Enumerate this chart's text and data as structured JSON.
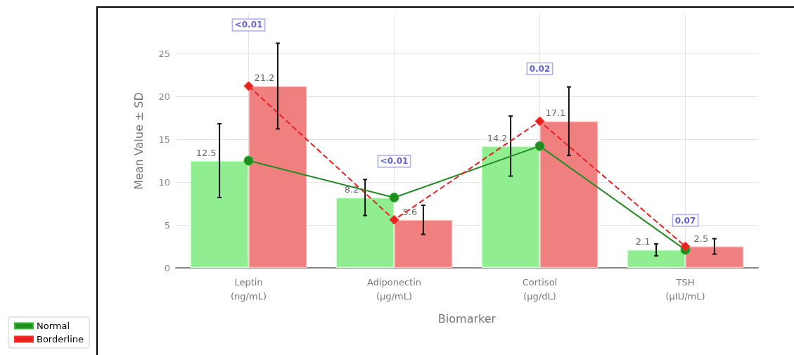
{
  "chart_data": {
    "type": "bar",
    "xlabel": "Biomarker",
    "ylabel": "Mean Value ± SD",
    "categories": [
      "Leptin\n(ng/mL)",
      "Adiponectin\n(µg/mL)",
      "Cortisol\n(µg/dL)",
      "TSH\n(µIU/mL)"
    ],
    "series": [
      {
        "name": "Normal",
        "type": "line",
        "color": "#228b22",
        "values": [
          12.5,
          8.2,
          14.2,
          2.1
        ],
        "marker": "circle",
        "line_style": "solid"
      },
      {
        "name": "Borderline",
        "type": "line",
        "color": "#e8231f",
        "values": [
          21.2,
          5.6,
          17.1,
          2.5
        ],
        "marker": "diamond",
        "line_style": "dashed"
      },
      {
        "color": "#90ee90",
        "values": [
          12.5,
          8.2,
          14.2,
          2.1
        ],
        "errors": [
          4.3,
          2.1,
          3.5,
          0.7
        ],
        "value_labels": [
          "12.5",
          "8.2",
          "14.2",
          "2.1"
        ]
      },
      {
        "color": "#f08080",
        "values": [
          21.2,
          5.6,
          17.1,
          2.5
        ],
        "errors": [
          5.0,
          1.7,
          4.0,
          0.9
        ],
        "value_labels": [
          "21.2",
          "5.6",
          "17.1",
          "2.5"
        ]
      }
    ],
    "annotations": [
      "<0.01",
      "<0.01",
      "0.02",
      "0.07"
    ],
    "ylim": [
      0,
      29.6
    ],
    "yticks": [
      0,
      5,
      10,
      15,
      20,
      25
    ],
    "grid": true,
    "legend": "bottom left"
  }
}
